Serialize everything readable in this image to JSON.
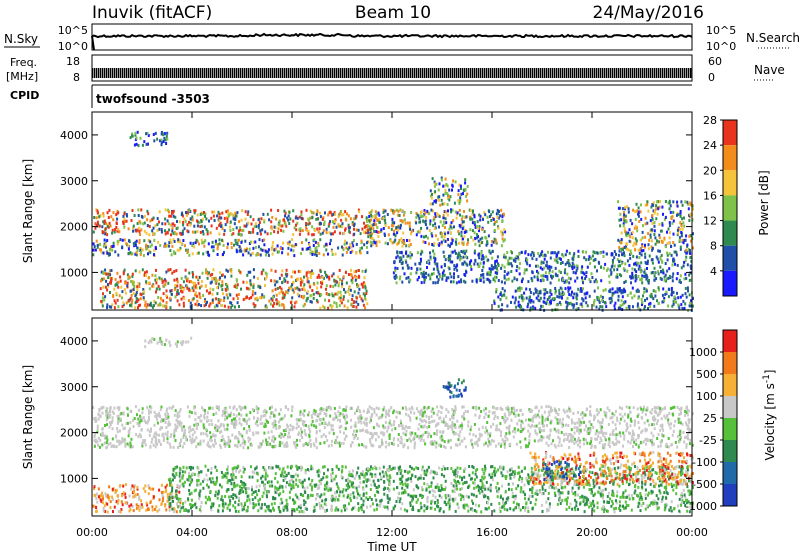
{
  "header": {
    "station": "Inuvik (fitACF)",
    "beam": "Beam 10",
    "date": "24/May/2016"
  },
  "status_panels": {
    "nsky_label": "N.Sky",
    "nsearch_label": "N.Search",
    "noise_ticks": [
      "10^5",
      "10^0"
    ],
    "freq_label_line1": "Freq.",
    "freq_label_line2": "[MHz]",
    "freq_ticks": [
      "18",
      "8"
    ],
    "nave_label": "Nave",
    "nave_ticks": [
      "60",
      "0"
    ],
    "cpid_label": "CPID",
    "cpid_value": "twofsound -3503"
  },
  "time_axis": {
    "label": "Time UT",
    "ticks": [
      "00:00",
      "04:00",
      "08:00",
      "12:00",
      "16:00",
      "20:00",
      "00:00"
    ]
  },
  "chart_data": [
    {
      "type": "heatmap",
      "name": "power-panel",
      "xlabel": "Time UT",
      "ylabel": "Slant Range [km]",
      "xlim": [
        0,
        24
      ],
      "ylim": [
        180,
        4500
      ],
      "yticks": [
        1000,
        2000,
        3000,
        4000
      ],
      "colorbar": {
        "label": "Power [dB]",
        "ticks": [
          4,
          8,
          12,
          16,
          20,
          24,
          28
        ],
        "range": [
          0,
          30
        ],
        "colors": [
          "#1a1aff",
          "#1f4fa8",
          "#2e8a4f",
          "#7fc24a",
          "#f5c43b",
          "#f28c1b",
          "#e8341c"
        ]
      },
      "scatter_bands": [
        {
          "t0": 0.0,
          "t1": 11.5,
          "r0": 1850,
          "r1": 2400,
          "level": "strong"
        },
        {
          "t0": 0.0,
          "t1": 11.0,
          "r0": 1400,
          "r1": 1750,
          "level": "medium"
        },
        {
          "t0": 0.3,
          "t1": 11.0,
          "r0": 250,
          "r1": 1100,
          "level": "strong"
        },
        {
          "t0": 11.0,
          "t1": 16.5,
          "r0": 1600,
          "r1": 2400,
          "level": "medium"
        },
        {
          "t0": 13.5,
          "t1": 15.0,
          "r0": 2500,
          "r1": 3100,
          "level": "medium"
        },
        {
          "t0": 12.0,
          "t1": 24.0,
          "r0": 800,
          "r1": 1500,
          "level": "weak"
        },
        {
          "t0": 21.0,
          "t1": 24.0,
          "r0": 1500,
          "r1": 2600,
          "level": "medium"
        },
        {
          "t0": 16.0,
          "t1": 24.0,
          "r0": 200,
          "r1": 700,
          "level": "weak"
        },
        {
          "t0": 1.5,
          "t1": 3.0,
          "r0": 3800,
          "r1": 4100,
          "level": "weak"
        }
      ]
    },
    {
      "type": "heatmap",
      "name": "velocity-panel",
      "xlabel": "Time UT",
      "ylabel": "Slant Range [km]",
      "xlim": [
        0,
        24
      ],
      "ylim": [
        180,
        4500
      ],
      "yticks": [
        1000,
        2000,
        3000,
        4000
      ],
      "colorbar": {
        "label": "Velocity [m s^-1]",
        "ticks": [
          "1000",
          "500",
          "100",
          "25",
          "-25",
          "-100",
          "-500",
          "-1000"
        ],
        "colors": [
          "#1f3fbf",
          "#1f6aa8",
          "#2e8a4f",
          "#55c03a",
          "#c8c8c8",
          "#f5b035",
          "#f27a1b",
          "#e8201c"
        ]
      },
      "scatter_bands": [
        {
          "t0": 0.0,
          "t1": 24.0,
          "r0": 1700,
          "r1": 2600,
          "level": "ground"
        },
        {
          "t0": 0.0,
          "t1": 3.5,
          "r0": 300,
          "r1": 900,
          "level": "negative"
        },
        {
          "t0": 3.0,
          "t1": 24.0,
          "r0": 300,
          "r1": 1300,
          "level": "positive"
        },
        {
          "t0": 17.5,
          "t1": 24.0,
          "r0": 900,
          "r1": 1600,
          "level": "negative"
        },
        {
          "t0": 18.0,
          "t1": 19.5,
          "r0": 1000,
          "r1": 1400,
          "level": "fast"
        },
        {
          "t0": 14.0,
          "t1": 15.0,
          "r0": 2800,
          "r1": 3200,
          "level": "fast"
        },
        {
          "t0": 2.0,
          "t1": 4.0,
          "r0": 3900,
          "r1": 4100,
          "level": "ground"
        }
      ]
    }
  ]
}
